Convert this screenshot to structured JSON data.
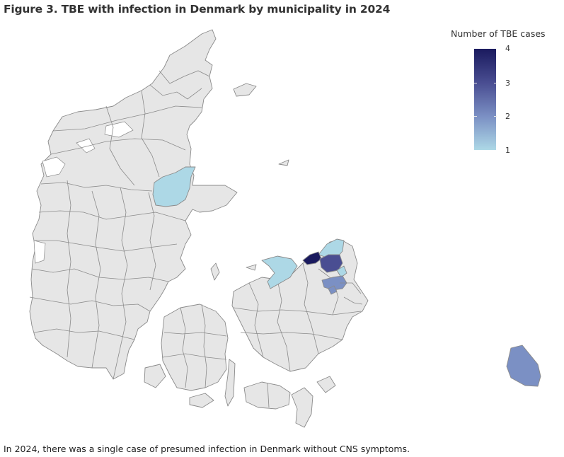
{
  "title": "Figure 3. TBE with infection in Denmark by municipality in 2024",
  "legend": {
    "title": "Number of TBE cases",
    "ticks": [
      "4",
      "3",
      "2",
      "1"
    ]
  },
  "caption": "In 2024, there was a single case  of presumed infection in Denmark without CNS symptoms.",
  "colors": {
    "land": "#e6e6e6",
    "border": "#8a8a8a",
    "case_1": "#add8e6",
    "case_2": "#7b90c4",
    "case_3": "#4a4e92",
    "case_4": "#1a1a5e"
  },
  "map_data": {
    "highlighted": [
      {
        "region": "north-jutland-interior",
        "cases": 1
      },
      {
        "region": "north-zealand-coast",
        "cases": 1
      },
      {
        "region": "odsherred-area",
        "cases": 1
      },
      {
        "region": "north-zealand-west",
        "cases": 4
      },
      {
        "region": "north-zealand-central",
        "cases": 3
      },
      {
        "region": "copenhagen-west",
        "cases": 2
      },
      {
        "region": "bornholm",
        "cases": 2
      }
    ]
  }
}
